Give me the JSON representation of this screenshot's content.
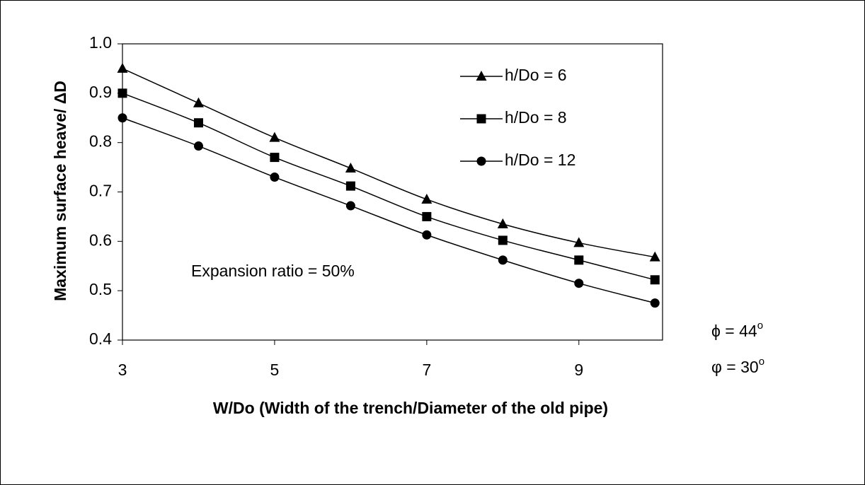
{
  "chart_data": {
    "type": "line",
    "x_label": "W/Do (Width of the trench/Diameter of the old pipe)",
    "y_label": "Maximum surface heave/ ΔD",
    "x": [
      3,
      4,
      5,
      6,
      7,
      8,
      9,
      10
    ],
    "xlim": [
      3,
      10.1
    ],
    "xticks": [
      3,
      5,
      7,
      9
    ],
    "ylim": [
      0.4,
      1.0
    ],
    "yticks": [
      0.4,
      0.5,
      0.6,
      0.7,
      0.8,
      0.9,
      {
        "value": 1.0,
        "label": "1.0"
      }
    ],
    "series": [
      {
        "name": "h/Do = 6",
        "color": "#000000",
        "marker": "triangle",
        "values": [
          0.95,
          0.88,
          0.81,
          0.748,
          0.685,
          0.635,
          0.597,
          0.568
        ]
      },
      {
        "name": "h/Do = 8",
        "color": "#000000",
        "marker": "square",
        "values": [
          0.9,
          0.84,
          0.77,
          0.712,
          0.65,
          0.602,
          0.562,
          0.522
        ]
      },
      {
        "name": "h/Do = 12",
        "color": "#000000",
        "marker": "circle",
        "values": [
          0.85,
          0.793,
          0.73,
          0.672,
          0.613,
          0.562,
          0.515,
          0.475
        ]
      }
    ],
    "annotations": [
      {
        "text": "Expansion ratio = 50%"
      },
      {
        "text": "ϕ = 44",
        "sup": "o"
      },
      {
        "text": "φ = 30",
        "sup": "o"
      }
    ],
    "legend": "upper right",
    "smooth": true
  }
}
